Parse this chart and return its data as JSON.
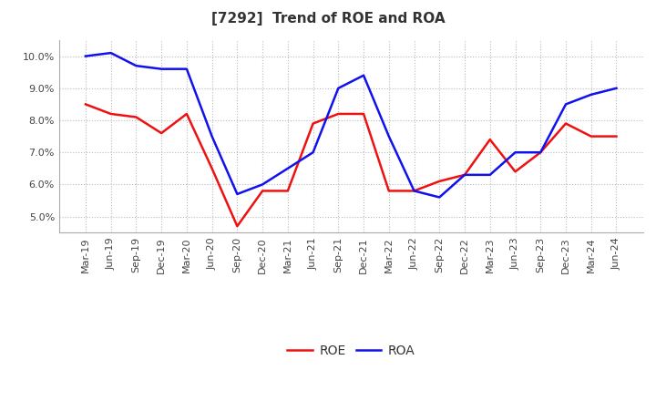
{
  "title": "[7292]  Trend of ROE and ROA",
  "labels": [
    "Mar-19",
    "Jun-19",
    "Sep-19",
    "Dec-19",
    "Mar-20",
    "Jun-20",
    "Sep-20",
    "Dec-20",
    "Mar-21",
    "Jun-21",
    "Sep-21",
    "Dec-21",
    "Mar-22",
    "Jun-22",
    "Sep-22",
    "Dec-22",
    "Mar-23",
    "Jun-23",
    "Sep-23",
    "Dec-23",
    "Mar-24",
    "Jun-24"
  ],
  "ROE": [
    8.5,
    8.2,
    8.1,
    7.6,
    8.2,
    6.5,
    4.7,
    5.8,
    5.8,
    7.9,
    8.2,
    8.2,
    5.8,
    5.8,
    6.1,
    6.3,
    7.4,
    6.4,
    7.0,
    7.9,
    7.5,
    7.5
  ],
  "ROA": [
    10.0,
    10.1,
    9.7,
    9.6,
    9.6,
    7.5,
    5.7,
    6.0,
    6.5,
    7.0,
    9.0,
    9.4,
    7.5,
    5.8,
    5.6,
    6.3,
    6.3,
    7.0,
    7.0,
    8.5,
    8.8,
    9.0
  ],
  "ROE_color": "#EE1111",
  "ROA_color": "#1111EE",
  "background_color": "#FFFFFF",
  "plot_bg_color": "#FFFFFF",
  "grid_color": "#BBBBBB",
  "title_color": "#333333",
  "ylim": [
    4.5,
    10.5
  ],
  "yticks": [
    5.0,
    6.0,
    7.0,
    8.0,
    9.0,
    10.0
  ],
  "title_fontsize": 11,
  "legend_fontsize": 10,
  "tick_fontsize": 8,
  "line_width": 1.8
}
